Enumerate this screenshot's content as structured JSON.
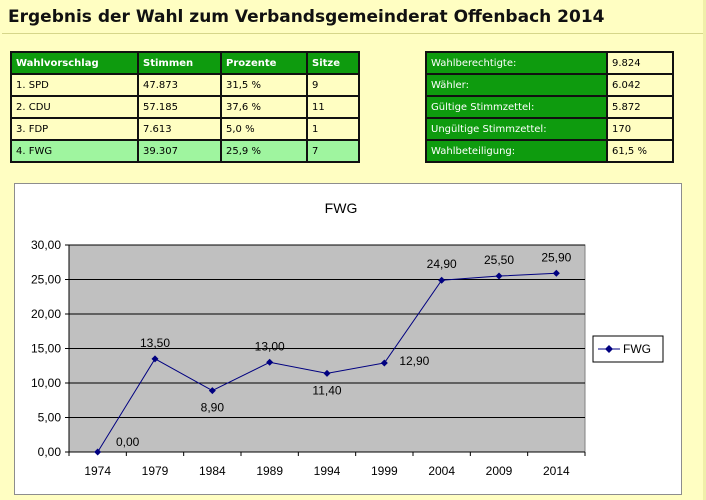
{
  "page": {
    "title": "Ergebnis der Wahl zum Verbandsgemeinderat Offenbach 2014"
  },
  "results": {
    "headers": [
      "Wahlvorschlag",
      "Stimmen",
      "Prozente",
      "Sitze"
    ],
    "rows": [
      [
        "1. SPD",
        "47.873",
        "31,5 %",
        "9"
      ],
      [
        "2. CDU",
        "57.185",
        "37,6 %",
        "11"
      ],
      [
        "3. FDP",
        "7.613",
        "5,0 %",
        "1"
      ],
      [
        "4. FWG",
        "39.307",
        "25,9 %",
        "7"
      ]
    ]
  },
  "summary": {
    "rows": [
      [
        "Wahlberechtigte:",
        "9.824"
      ],
      [
        "Wähler:",
        "6.042"
      ],
      [
        "Gültige Stimmzettel:",
        "5.872"
      ],
      [
        "Ungültige Stimmzettel:",
        "170"
      ],
      [
        "Wahlbeteiligung:",
        "61,5 %"
      ]
    ]
  },
  "colors": {
    "green": "#0e9b0e",
    "highlight": "#9ff59f",
    "background": "#fffec2",
    "plot": "#c0c0c0",
    "series": "#000080"
  },
  "chart_data": {
    "type": "line",
    "title": "FWG",
    "categories": [
      "1974",
      "1979",
      "1984",
      "1989",
      "1994",
      "1999",
      "2004",
      "2009",
      "2014"
    ],
    "series": [
      {
        "name": "FWG",
        "values": [
          0.0,
          13.5,
          8.9,
          13.0,
          11.4,
          12.9,
          24.9,
          25.5,
          25.9
        ],
        "labels": [
          "0,00",
          "13,50",
          "8,90",
          "13,00",
          "11,40",
          "12,90",
          "24,90",
          "25,50",
          "25,90"
        ]
      }
    ],
    "ylim": [
      0,
      30
    ],
    "yticks": [
      "0,00",
      "5,00",
      "10,00",
      "15,00",
      "20,00",
      "25,00",
      "30,00"
    ],
    "legend": "right",
    "grid": true
  }
}
